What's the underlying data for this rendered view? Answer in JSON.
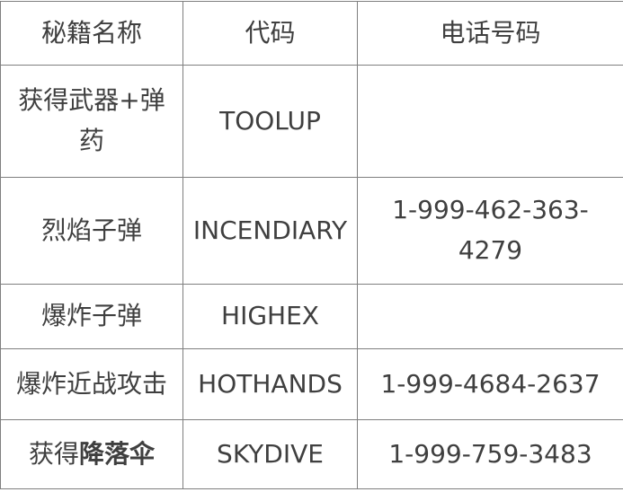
{
  "table": {
    "headers": [
      {
        "label": "秘籍名称"
      },
      {
        "label": "代码"
      },
      {
        "label": "电话号码"
      }
    ],
    "rows": [
      {
        "name": "获得武器+弹药",
        "name_bold": "",
        "code": "TOOLUP",
        "phone": ""
      },
      {
        "name": "烈焰子弹",
        "name_bold": "",
        "code": "INCENDIARY",
        "phone": "1-999-462-363-4279"
      },
      {
        "name": "爆炸子弹",
        "name_bold": "",
        "code": "HIGHEX",
        "phone": ""
      },
      {
        "name": "爆炸近战攻击",
        "name_bold": "",
        "code": "HOTHANDS",
        "phone": "1-999-4684-2637"
      },
      {
        "name": "获得",
        "name_bold": "降落伞",
        "code": "SKYDIVE",
        "phone": "1-999-759-3483"
      }
    ],
    "colors": {
      "border": "#7f7f7f",
      "text": "#3f3f3f",
      "background": "#ffffff"
    }
  }
}
